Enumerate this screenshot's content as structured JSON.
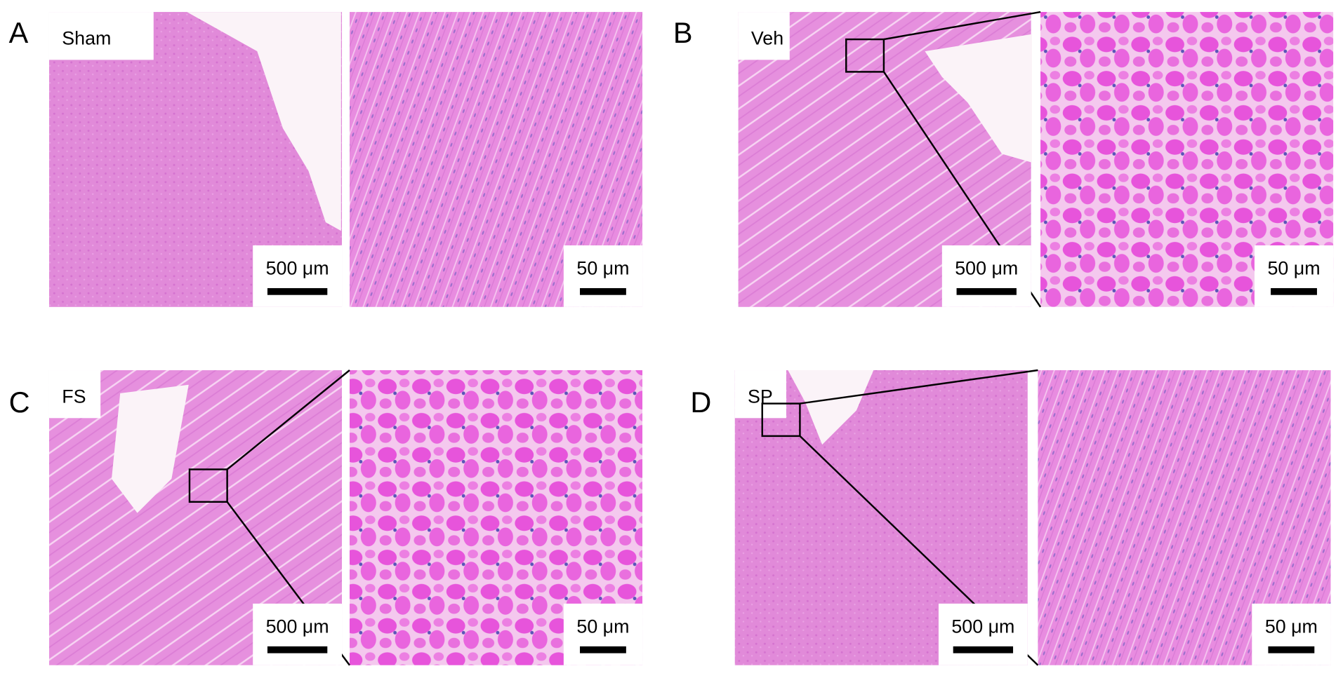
{
  "panels": [
    {
      "letter": "A",
      "group": "Sham",
      "low_mag_scale": "500 μm",
      "high_mag_scale": "50 μm"
    },
    {
      "letter": "B",
      "group": "Veh",
      "low_mag_scale": "500 μm",
      "high_mag_scale": "50 μm"
    },
    {
      "letter": "C",
      "group": "FS",
      "low_mag_scale": "500 μm",
      "high_mag_scale": "50 μm"
    },
    {
      "letter": "D",
      "group": "SP",
      "low_mag_scale": "500 μm",
      "high_mag_scale": "50 μm"
    }
  ]
}
